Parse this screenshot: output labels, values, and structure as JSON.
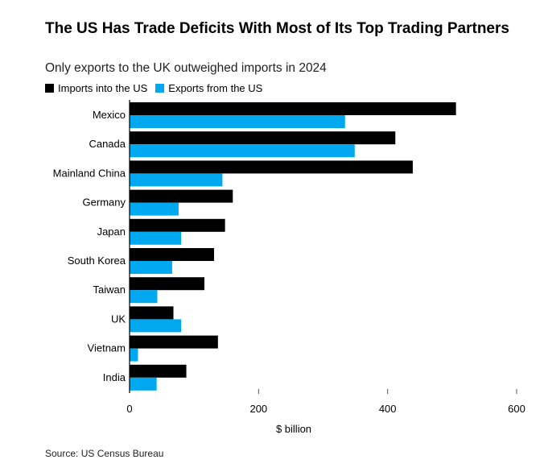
{
  "title": "The US Has Trade Deficits With Most of Its Top Trading Partners",
  "subtitle": "Only exports to the UK outweighed imports in 2024",
  "source": "Source: US Census Bureau",
  "colors": {
    "imports": "#000000",
    "exports": "#00a8f0",
    "axis": "#000000",
    "tick": "#555555"
  },
  "chart_data": {
    "type": "bar",
    "orientation": "horizontal",
    "title": "The US Has Trade Deficits With Most of Its Top Trading Partners",
    "subtitle": "Only exports to the UK outweighed imports in 2024",
    "xlabel": "$ billion",
    "ylabel": "",
    "xlim": [
      0,
      600
    ],
    "xticks": [
      "0",
      "200",
      "400",
      "600"
    ],
    "xtick_values": [
      0,
      200,
      400,
      600
    ],
    "categories": [
      "Mexico",
      "Canada",
      "Mainland China",
      "Germany",
      "Japan",
      "South Korea",
      "Taiwan",
      "UK",
      "Vietnam",
      "India"
    ],
    "series": [
      {
        "name": "Imports into the US",
        "values": [
          506,
          412,
          439,
          160,
          148,
          131,
          116,
          68,
          137,
          88
        ]
      },
      {
        "name": "Exports from the US",
        "values": [
          334,
          349,
          144,
          76,
          80,
          66,
          43,
          80,
          13,
          42
        ]
      }
    ],
    "legend": "top-left",
    "grid": false
  }
}
